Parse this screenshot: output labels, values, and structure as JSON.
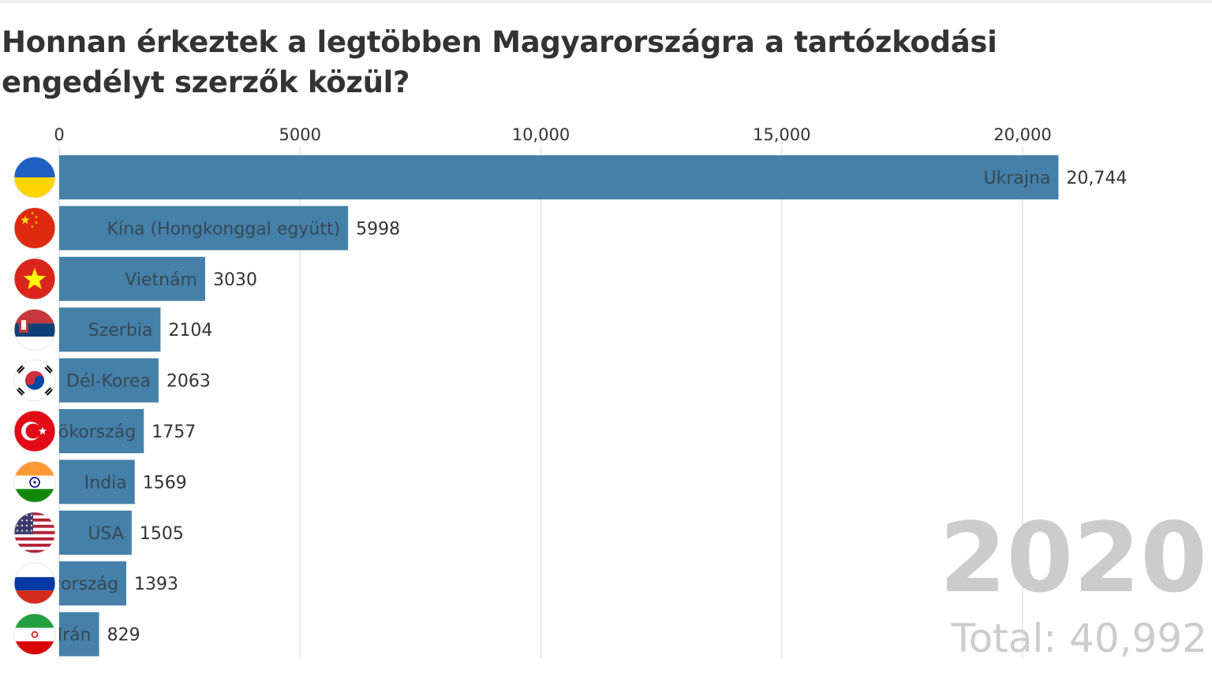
{
  "title": "Honnan érkeztek a legtöbben Magyarországra a tartózkodási engedélyt szerzők közül?",
  "colors": {
    "bar": "#4580a8",
    "grid": "#dddddd",
    "text": "#333333",
    "year": "#cccccc"
  },
  "chart_data": {
    "type": "bar",
    "orientation": "horizontal",
    "title": "Honnan érkeztek a legtöbben Magyarországra a tartózkodási engedélyt szerzők közül?",
    "xlim": [
      0,
      22000
    ],
    "ticks": [
      0,
      5000,
      10000,
      15000,
      20000
    ],
    "tick_labels": [
      "0",
      "5000",
      "10,000",
      "15,000",
      "20,000"
    ],
    "grid": true,
    "categories": [
      "Ukrajna",
      "Kína (Hongkonggal együtt)",
      "Vietnám",
      "Szerbia",
      "Dél-Korea",
      "Törökország",
      "India",
      "USA",
      "Oroszország",
      "Irán"
    ],
    "values": [
      20744,
      5998,
      3030,
      2104,
      2063,
      1757,
      1569,
      1505,
      1393,
      829
    ],
    "value_labels": [
      "20,744",
      "5998",
      "3030",
      "2104",
      "2063",
      "1757",
      "1569",
      "1505",
      "1393",
      "829"
    ],
    "flags": [
      "ukraine-flag-icon",
      "china-flag-icon",
      "vietnam-flag-icon",
      "serbia-flag-icon",
      "south-korea-flag-icon",
      "turkey-flag-icon",
      "india-flag-icon",
      "usa-flag-icon",
      "russia-flag-icon",
      "iran-flag-icon"
    ],
    "year": "2020",
    "total_label": "Total: 40,992"
  }
}
